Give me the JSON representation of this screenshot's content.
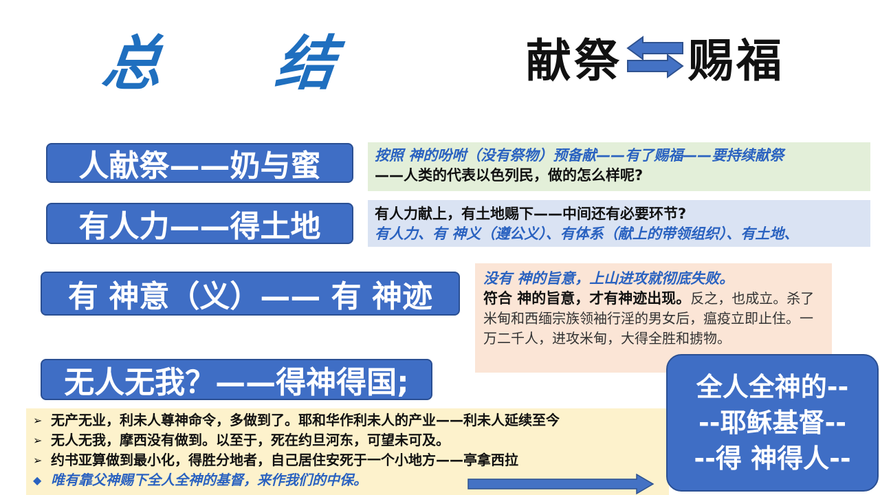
{
  "title": "总 结",
  "exchange": {
    "left": "献祭",
    "right": "赐福"
  },
  "pills": [
    "人献祭——奶与蜜",
    "有人力——得土地",
    "有 神意（义）—— 有 神迹",
    "无人无我？——得神得国;"
  ],
  "box1": {
    "line1": "按照 神的吩咐（没有祭物）预备献——有了赐福——要持续献祭",
    "line2": "——人类的代表以色列民，做的怎么样呢?"
  },
  "box2": {
    "line1": "有人力献上，有土地赐下——中间还有必要环节?",
    "line2": "有人力、有 神义（遵公义）、有体系（献上的带领组织）、有土地、"
  },
  "box3": {
    "line1": "没有 神的旨意，上山进攻就彻底失败。",
    "bold": "符合 神的旨意，才有神迹出现。",
    "normal": "反之，也成立。杀了米甸和西缅宗族领袖行淫的男女后，瘟疫立即止住。一万二千人，进攻米甸，大得全胜和掳物。"
  },
  "bottom": {
    "items": [
      "无产无业，利未人尊神命令，多做到了。耶和华作利未人的产业——利未人延续至今",
      "无人无我，摩西没有做到。以至于，死在约旦河东，可望未可及。",
      " 约书亚算做到最小化，得胜分地者，自己居住安死于一个小地方——亭拿西拉",
      "唯有靠父神赐下全人全神的基督，来作我们的中保。"
    ],
    "bullets": [
      "➢",
      "➢",
      "➢",
      "◆"
    ]
  },
  "bluebox": [
    "全人全神的--",
    "--耶稣基督--",
    "--得 神得人--"
  ],
  "colors": {
    "title": "#1f6fbf",
    "pill": "#3f6ec5",
    "green_box": "#e3efd9",
    "blue_box": "#dae3f3",
    "peach_box": "#fbe5d6",
    "yellow_box": "#fdf2cc"
  }
}
